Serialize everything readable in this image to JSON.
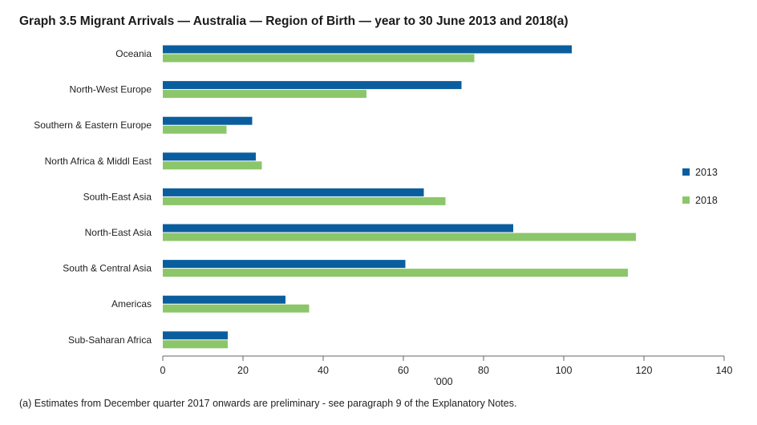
{
  "title": "Graph 3.5 Migrant Arrivals — Australia — Region of Birth — year to 30 June 2013 and 2018(a)",
  "footnote": "(a) Estimates from December quarter 2017 onwards are preliminary - see paragraph 9 of the Explanatory Notes.",
  "colors": {
    "s2013": "#0b5e9e",
    "s2018": "#8cc66a",
    "axis": "#666666"
  },
  "chart_data": {
    "type": "bar",
    "orientation": "horizontal",
    "title": "Graph 3.5 Migrant Arrivals — Australia — Region of Birth — year to 30 June 2013 and 2018(a)",
    "xlabel": "'000",
    "ylabel": "",
    "xlim": [
      0,
      140
    ],
    "xticks": [
      0,
      20,
      40,
      60,
      80,
      100,
      120,
      140
    ],
    "grid": false,
    "legend": "right",
    "categories": [
      "Oceania",
      "North-West Europe",
      "Southern & Eastern Europe",
      "North Africa & Middl East",
      "South-East Asia",
      "North-East Asia",
      "South & Central Asia",
      "Americas",
      "Sub-Saharan Africa"
    ],
    "series": [
      {
        "name": "2013",
        "values": [
          102,
          74.5,
          22.3,
          23.2,
          65.1,
          87.4,
          60.5,
          30.6,
          16.2
        ]
      },
      {
        "name": "2018",
        "values": [
          77.7,
          50.8,
          15.9,
          24.7,
          70.5,
          118,
          116,
          36.5,
          16.2
        ]
      }
    ]
  }
}
